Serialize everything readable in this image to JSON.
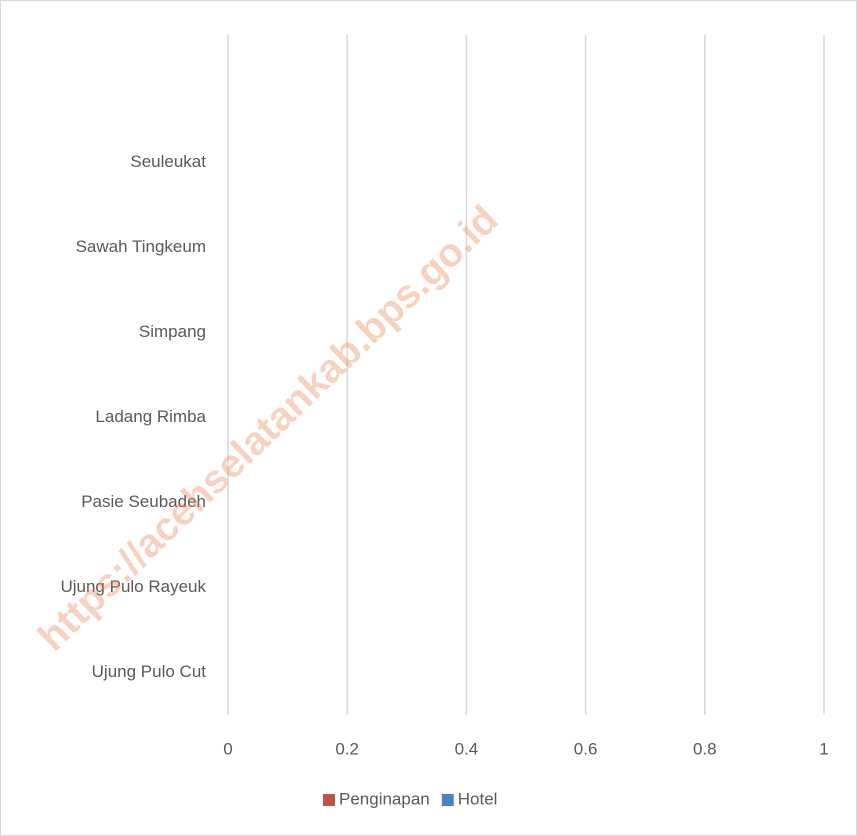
{
  "chart_data": {
    "type": "hbar",
    "categories": [
      null,
      "Seuleukat",
      "Sawah Tingkeum",
      "Simpang",
      "Ladang Rimba",
      "Pasie Seubadeh",
      "Ujung Pulo Rayeuk",
      "Ujung Pulo Cut"
    ],
    "series": [
      {
        "name": "Penginapan",
        "color": "#c0504d",
        "values": [
          0,
          0,
          0,
          0,
          0,
          0,
          0,
          0
        ]
      },
      {
        "name": "Hotel",
        "color": "#4f81bd",
        "values": [
          0,
          0,
          0,
          0,
          0,
          0,
          0,
          0
        ]
      }
    ],
    "xlim": [
      0,
      1
    ],
    "xticks": [
      0,
      0.2,
      0.4,
      0.6,
      0.8,
      1
    ],
    "grid": true,
    "legend": "bottom",
    "watermark": "https://acehselatankab.bps.go.id"
  }
}
